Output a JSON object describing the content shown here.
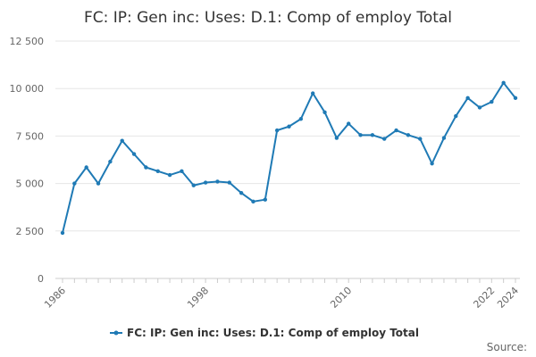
{
  "chart_data": {
    "type": "line",
    "title": "FC: IP: Gen inc: Uses: D.1: Comp of employ Total",
    "xlabel": "",
    "ylabel": "",
    "x": [
      1986,
      1987,
      1988,
      1989,
      1990,
      1991,
      1992,
      1993,
      1994,
      1995,
      1996,
      1997,
      1998,
      1999,
      2000,
      2001,
      2002,
      2003,
      2004,
      2005,
      2006,
      2007,
      2008,
      2009,
      2010,
      2011,
      2012,
      2013,
      2014,
      2015,
      2016,
      2017,
      2018,
      2019,
      2020,
      2021,
      2022,
      2023,
      2024
    ],
    "series": [
      {
        "name": "FC: IP: Gen inc: Uses: D.1: Comp of employ Total",
        "color": "#1f7ab5",
        "values": [
          2400,
          5000,
          5850,
          5000,
          6150,
          7250,
          6550,
          5850,
          5650,
          5450,
          5650,
          4900,
          5050,
          5100,
          5050,
          4500,
          4050,
          4150,
          7800,
          8000,
          8400,
          9750,
          8750,
          7400,
          8150,
          7550,
          7550,
          7350,
          7800,
          7550,
          7350,
          6050,
          7400,
          8550,
          9500,
          9000,
          9300,
          10300,
          9500
        ]
      }
    ],
    "xlim": [
      1986,
      2024
    ],
    "ylim": [
      0,
      12500
    ],
    "x_ticks": [
      "1986",
      "1998",
      "2010",
      "2022",
      "2024"
    ],
    "y_ticks": [
      "0",
      "2 500",
      "5 000",
      "7 500",
      "10 000",
      "12 500"
    ],
    "grid": true,
    "legend_position": "bottom",
    "source_label": "Source:"
  }
}
